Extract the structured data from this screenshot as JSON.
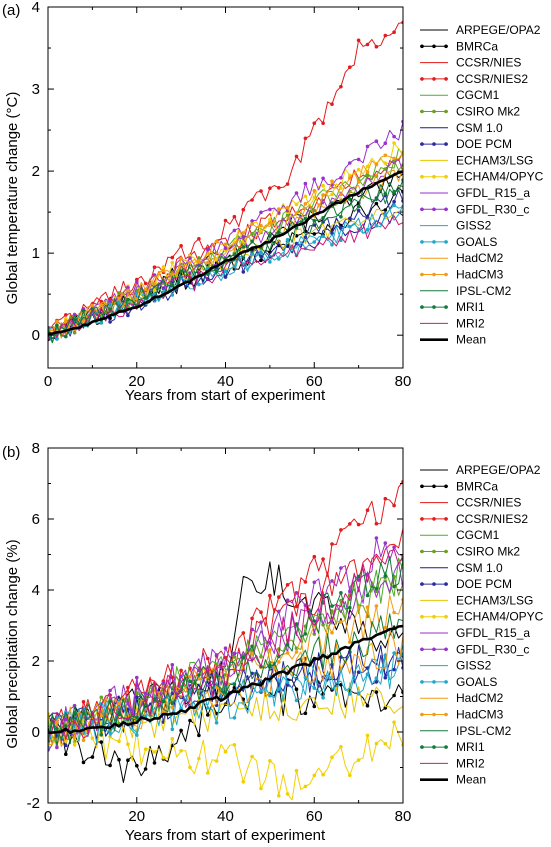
{
  "legend_entries": [
    {
      "name": "ARPEGE/OPA2",
      "color": "#000000",
      "marker": false,
      "width": 1
    },
    {
      "name": "BMRCa",
      "color": "#000000",
      "marker": true,
      "width": 1
    },
    {
      "name": "CCSR/NIES",
      "color": "#e41a1c",
      "marker": false,
      "width": 1
    },
    {
      "name": "CCSR/NIES2",
      "color": "#e41a1c",
      "marker": true,
      "width": 1
    },
    {
      "name": "CGCM1",
      "color": "#4daf27",
      "marker": false,
      "width": 1
    },
    {
      "name": "CSIRO Mk2",
      "color": "#6aa01f",
      "marker": true,
      "width": 1
    },
    {
      "name": "CSM 1.0",
      "color": "#1b1b8f",
      "marker": false,
      "width": 1
    },
    {
      "name": "DOE PCM",
      "color": "#2b2ba0",
      "marker": true,
      "width": 1
    },
    {
      "name": "ECHAM3/LSG",
      "color": "#e6c700",
      "marker": false,
      "width": 1
    },
    {
      "name": "ECHAM4/OPYC",
      "color": "#f2d000",
      "marker": true,
      "width": 1
    },
    {
      "name": "GFDL_R15_a",
      "color": "#9932cc",
      "marker": false,
      "width": 1
    },
    {
      "name": "GFDL_R30_c",
      "color": "#9932cc",
      "marker": true,
      "width": 1
    },
    {
      "name": "GISS2",
      "color": "#1fa9c9",
      "marker": false,
      "width": 1
    },
    {
      "name": "GOALS",
      "color": "#1fa9c9",
      "marker": true,
      "width": 1
    },
    {
      "name": "HadCM2",
      "color": "#f39c12",
      "marker": false,
      "width": 1
    },
    {
      "name": "HadCM3",
      "color": "#f39c12",
      "marker": true,
      "width": 1
    },
    {
      "name": "IPSL-CM2",
      "color": "#137a3a",
      "marker": false,
      "width": 1
    },
    {
      "name": "MRI1",
      "color": "#137a3a",
      "marker": true,
      "width": 1
    },
    {
      "name": "MRI2",
      "color": "#d0147a",
      "marker": false,
      "width": 1
    },
    {
      "name": "Mean",
      "color": "#000000",
      "marker": false,
      "width": 3
    }
  ],
  "chart_data": [
    {
      "type": "line",
      "panel_label": "(a)",
      "xlabel": "Years from start of experiment",
      "ylabel": "Global temperature change (°C)",
      "xlim": [
        0,
        80
      ],
      "ylim": [
        -0.4,
        4
      ],
      "xticks": [
        0,
        20,
        40,
        60,
        80
      ],
      "yticks": [
        0,
        1,
        2,
        3,
        4
      ],
      "legend_position": "right",
      "series_endpoints": [
        {
          "name": "ARPEGE/OPA2",
          "x": [
            0,
            40,
            80
          ],
          "y": [
            0.0,
            1.0,
            1.9
          ]
        },
        {
          "name": "BMRCa",
          "x": [
            0,
            40,
            80
          ],
          "y": [
            0.0,
            0.85,
            1.7
          ]
        },
        {
          "name": "CCSR/NIES",
          "x": [
            0,
            40,
            80
          ],
          "y": [
            0.1,
            1.1,
            2.2
          ]
        },
        {
          "name": "CCSR/NIES2",
          "x": [
            0,
            40,
            55,
            70,
            80
          ],
          "y": [
            0.0,
            1.3,
            2.0,
            3.5,
            3.8
          ]
        },
        {
          "name": "CGCM1",
          "x": [
            0,
            40,
            80
          ],
          "y": [
            0.05,
            1.0,
            2.2
          ]
        },
        {
          "name": "CSIRO Mk2",
          "x": [
            0,
            40,
            80
          ],
          "y": [
            0.0,
            1.0,
            2.1
          ]
        },
        {
          "name": "CSM 1.0",
          "x": [
            0,
            40,
            80
          ],
          "y": [
            0.0,
            0.8,
            1.5
          ]
        },
        {
          "name": "DOE PCM",
          "x": [
            0,
            40,
            80
          ],
          "y": [
            0.0,
            0.8,
            1.7
          ]
        },
        {
          "name": "ECHAM3/LSG",
          "x": [
            0,
            40,
            80
          ],
          "y": [
            0.0,
            0.9,
            1.6
          ]
        },
        {
          "name": "ECHAM4/OPYC",
          "x": [
            0,
            40,
            80
          ],
          "y": [
            0.0,
            1.1,
            2.3
          ]
        },
        {
          "name": "GFDL_R15_a",
          "x": [
            0,
            40,
            80
          ],
          "y": [
            0.0,
            1.0,
            2.1
          ]
        },
        {
          "name": "GFDL_R30_c",
          "x": [
            0,
            40,
            80
          ],
          "y": [
            0.0,
            1.1,
            2.5
          ]
        },
        {
          "name": "GISS2",
          "x": [
            0,
            40,
            80
          ],
          "y": [
            0.0,
            0.8,
            1.5
          ]
        },
        {
          "name": "GOALS",
          "x": [
            0,
            40,
            80
          ],
          "y": [
            0.0,
            0.8,
            1.5
          ]
        },
        {
          "name": "HadCM2",
          "x": [
            0,
            40,
            80
          ],
          "y": [
            0.0,
            1.0,
            2.0
          ]
        },
        {
          "name": "HadCM3",
          "x": [
            0,
            40,
            80
          ],
          "y": [
            0.0,
            1.1,
            2.2
          ]
        },
        {
          "name": "IPSL-CM2",
          "x": [
            0,
            40,
            80
          ],
          "y": [
            0.0,
            0.9,
            1.8
          ]
        },
        {
          "name": "MRI1",
          "x": [
            0,
            40,
            80
          ],
          "y": [
            0.0,
            0.9,
            1.9
          ]
        },
        {
          "name": "MRI2",
          "x": [
            0,
            40,
            80
          ],
          "y": [
            0.0,
            0.8,
            1.4
          ]
        },
        {
          "name": "Mean",
          "x": [
            0,
            10,
            20,
            30,
            40,
            50,
            60,
            70,
            80
          ],
          "y": [
            0.0,
            0.15,
            0.35,
            0.6,
            0.9,
            1.15,
            1.45,
            1.75,
            2.0
          ]
        }
      ]
    },
    {
      "type": "line",
      "panel_label": "(b)",
      "xlabel": "Years from start of experiment",
      "ylabel": "Global precipitation change (%)",
      "xlim": [
        0,
        80
      ],
      "ylim": [
        -2,
        8
      ],
      "xticks": [
        0,
        20,
        40,
        60,
        80
      ],
      "yticks": [
        -2,
        0,
        2,
        4,
        6,
        8
      ],
      "legend_position": "right",
      "series_endpoints": [
        {
          "name": "ARPEGE/OPA2",
          "x": [
            0,
            40,
            45,
            80
          ],
          "y": [
            0.0,
            1.5,
            4.6,
            2.4
          ]
        },
        {
          "name": "BMRCa",
          "x": [
            0,
            19,
            40,
            80
          ],
          "y": [
            0.0,
            -1.2,
            1.0,
            0.8
          ]
        },
        {
          "name": "CCSR/NIES",
          "x": [
            0,
            40,
            80
          ],
          "y": [
            0.0,
            2.0,
            5.5
          ]
        },
        {
          "name": "CCSR/NIES2",
          "x": [
            0,
            40,
            80
          ],
          "y": [
            0.0,
            2.2,
            6.9
          ]
        },
        {
          "name": "CGCM1",
          "x": [
            0,
            40,
            80
          ],
          "y": [
            0.0,
            1.8,
            4.5
          ]
        },
        {
          "name": "CSIRO Mk2",
          "x": [
            0,
            40,
            80
          ],
          "y": [
            0.0,
            1.6,
            4.2
          ]
        },
        {
          "name": "CSM 1.0",
          "x": [
            0,
            40,
            80
          ],
          "y": [
            0.0,
            1.2,
            2.2
          ]
        },
        {
          "name": "DOE PCM",
          "x": [
            0,
            40,
            80
          ],
          "y": [
            0.0,
            1.2,
            2.0
          ]
        },
        {
          "name": "ECHAM3/LSG",
          "x": [
            0,
            40,
            80
          ],
          "y": [
            0.0,
            0.6,
            1.0
          ]
        },
        {
          "name": "ECHAM4/OPYC",
          "x": [
            0,
            40,
            55,
            80
          ],
          "y": [
            0.0,
            -0.8,
            -1.4,
            0.0
          ]
        },
        {
          "name": "GFDL_R15_a",
          "x": [
            0,
            40,
            80
          ],
          "y": [
            0.0,
            1.8,
            4.5
          ]
        },
        {
          "name": "GFDL_R30_c",
          "x": [
            0,
            40,
            80
          ],
          "y": [
            0.0,
            2.0,
            5.5
          ]
        },
        {
          "name": "GISS2",
          "x": [
            0,
            40,
            80
          ],
          "y": [
            0.0,
            1.0,
            2.0
          ]
        },
        {
          "name": "GOALS",
          "x": [
            0,
            40,
            80
          ],
          "y": [
            0.0,
            0.8,
            1.8
          ]
        },
        {
          "name": "HadCM2",
          "x": [
            0,
            40,
            80
          ],
          "y": [
            0.0,
            1.2,
            2.4
          ]
        },
        {
          "name": "HadCM3",
          "x": [
            0,
            40,
            80
          ],
          "y": [
            0.0,
            1.5,
            3.5
          ]
        },
        {
          "name": "IPSL-CM2",
          "x": [
            0,
            40,
            80
          ],
          "y": [
            0.0,
            1.4,
            3.0
          ]
        },
        {
          "name": "MRI1",
          "x": [
            0,
            40,
            80
          ],
          "y": [
            0.0,
            1.5,
            4.8
          ]
        },
        {
          "name": "MRI2",
          "x": [
            0,
            40,
            80
          ],
          "y": [
            0.0,
            1.6,
            5.0
          ]
        },
        {
          "name": "Mean",
          "x": [
            0,
            10,
            20,
            30,
            40,
            50,
            60,
            70,
            80
          ],
          "y": [
            0.0,
            0.1,
            0.3,
            0.6,
            1.0,
            1.5,
            2.0,
            2.5,
            3.0
          ]
        }
      ]
    }
  ]
}
